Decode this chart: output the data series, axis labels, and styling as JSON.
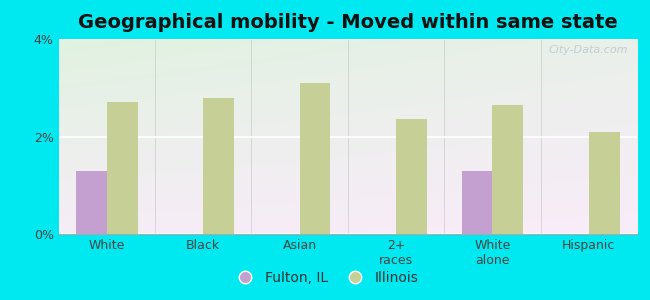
{
  "title": "Geographical mobility - Moved within same state",
  "categories": [
    "White",
    "Black",
    "Asian",
    "2+\nraces",
    "White\nalone",
    "Hispanic"
  ],
  "fulton_values": [
    1.3,
    0.0,
    0.0,
    0.0,
    1.3,
    0.0
  ],
  "illinois_values": [
    2.7,
    2.8,
    3.1,
    2.35,
    2.65,
    2.1
  ],
  "fulton_color": "#c4a0d0",
  "illinois_color": "#c5cf96",
  "background_outer": "#00e8f0",
  "ylim": [
    0,
    4.0
  ],
  "yticks": [
    0,
    2,
    4
  ],
  "ytick_labels": [
    "0%",
    "2%",
    "4%"
  ],
  "legend_labels": [
    "Fulton, IL",
    "Illinois"
  ],
  "bar_width": 0.32,
  "title_fontsize": 14,
  "tick_fontsize": 9,
  "legend_fontsize": 10,
  "watermark": "City-Data.com"
}
